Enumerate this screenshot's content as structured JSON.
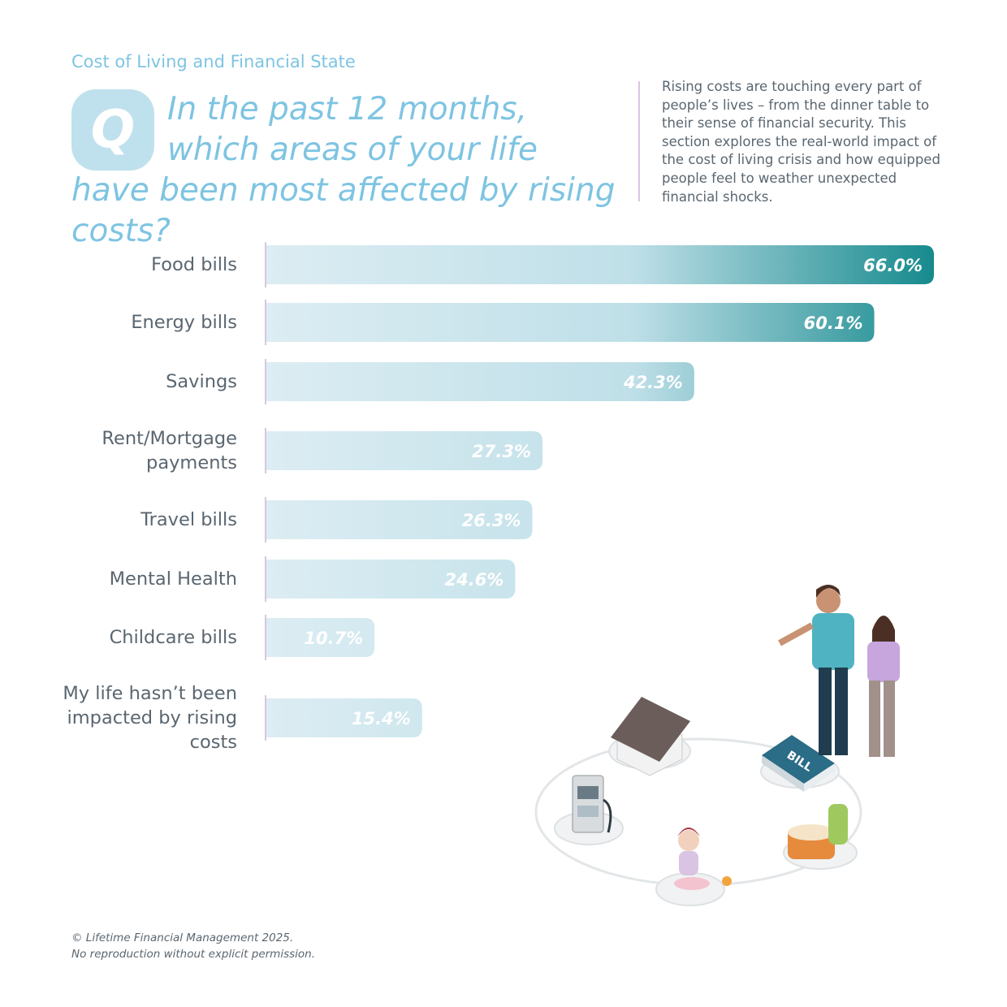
{
  "header": {
    "section": "Cost of Living and Financial State",
    "icon_letter": "Q",
    "description": "Rising costs are touching every part of people’s lives – from the dinner table to their sense of financial security. This section explores the real-world impact of the cost of living crisis and how equipped people feel to weather unexpected financial shocks."
  },
  "chart_data": {
    "type": "bar",
    "orientation": "horizontal",
    "title": "In the past 12 months, which areas of your life have been most affected by rising costs?",
    "categories": [
      "Food bills",
      "Energy bills",
      "Savings",
      "Rent/Mortgage payments",
      "Travel bills",
      "Mental Health",
      "Childcare bills",
      "My life hasn’t been impacted by rising costs"
    ],
    "values": [
      66.0,
      60.1,
      42.3,
      27.3,
      26.3,
      24.6,
      10.7,
      15.4
    ],
    "value_labels": [
      "66.0%",
      "60.1%",
      "42.3%",
      "27.3%",
      "26.3%",
      "24.6%",
      "10.7%",
      "15.4%"
    ],
    "gradient": [
      "#dcedf3",
      "#168a8d"
    ]
  },
  "illustration": {
    "bill_label": "BILL"
  },
  "footer": [
    "© Lifetime Financial Management 2025.",
    "No reproduction without explicit permission."
  ]
}
